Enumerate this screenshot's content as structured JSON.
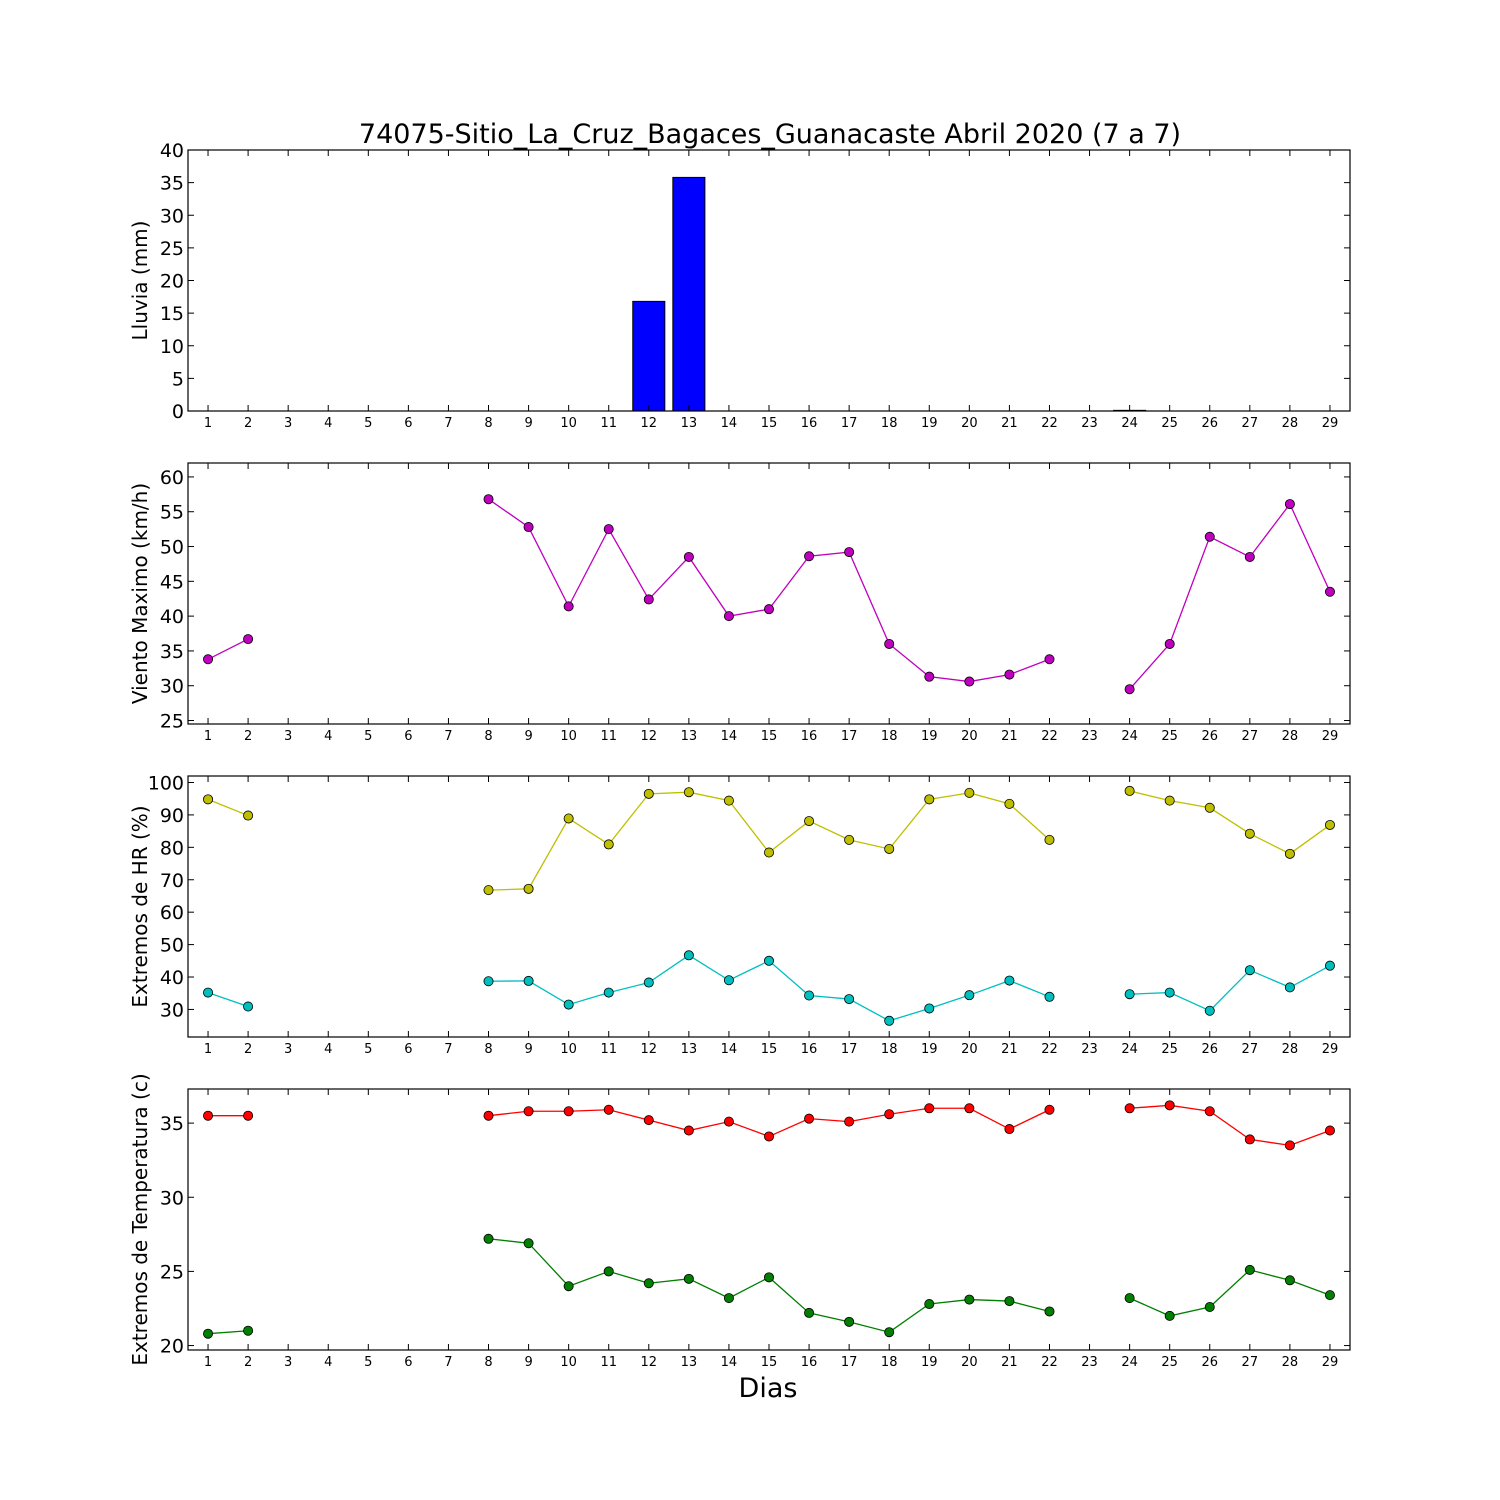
{
  "chart_data": {
    "type": "multi-panel",
    "title": "74075-Sitio_La_Cruz_Bagaces_Guanacaste Abril 2020  (7 a 7)",
    "xlabel": "Dias",
    "x": [
      1,
      2,
      3,
      4,
      5,
      6,
      7,
      8,
      9,
      10,
      11,
      12,
      13,
      14,
      15,
      16,
      17,
      18,
      19,
      20,
      21,
      22,
      23,
      24,
      25,
      26,
      27,
      28,
      29
    ],
    "x_tick_labels": [
      "1",
      "2",
      "3",
      "4",
      "5",
      "6",
      "7",
      "8",
      "9",
      "10",
      "11",
      "12",
      "13",
      "14",
      "15",
      "16",
      "17",
      "18",
      "19",
      "20",
      "21",
      "22",
      "23",
      "24",
      "25",
      "26",
      "27",
      "28",
      "29"
    ],
    "panels": [
      {
        "type": "bar",
        "ylabel": "Lluvia (mm)",
        "ylim": [
          0,
          40
        ],
        "yticks": [
          0,
          5,
          10,
          15,
          20,
          25,
          30,
          35,
          40
        ],
        "series": [
          {
            "color": "#0000ff",
            "values": [
              0,
              0,
              0,
              0,
              0,
              0,
              0,
              0,
              0,
              0,
              0,
              16.8,
              35.8,
              0,
              0,
              0,
              0,
              0,
              0,
              0,
              0,
              0,
              0,
              0.1,
              0,
              0,
              0,
              0,
              0
            ]
          }
        ]
      },
      {
        "type": "line",
        "ylabel": "Viento Maximo (km/h)",
        "ylim": [
          24.5,
          62
        ],
        "yticks": [
          25,
          30,
          35,
          40,
          45,
          50,
          55,
          60
        ],
        "series": [
          {
            "color": "#bf00bf",
            "values": [
              33.8,
              36.7,
              null,
              null,
              null,
              null,
              null,
              56.8,
              52.8,
              41.4,
              52.5,
              42.4,
              48.5,
              40.0,
              41.0,
              48.6,
              49.2,
              36.0,
              31.3,
              30.6,
              31.6,
              33.8,
              null,
              29.5,
              36.0,
              51.4,
              48.5,
              56.1,
              43.5
            ]
          }
        ]
      },
      {
        "type": "line",
        "ylabel": "Extremos de HR (%)",
        "ylim": [
          21.5,
          102
        ],
        "yticks": [
          30,
          40,
          50,
          60,
          70,
          80,
          90,
          100
        ],
        "series": [
          {
            "color": "#bfbf00",
            "values": [
              94.8,
              89.8,
              null,
              null,
              null,
              null,
              null,
              66.8,
              67.2,
              88.9,
              80.9,
              96.5,
              97.0,
              94.4,
              78.4,
              88.1,
              82.3,
              79.5,
              94.8,
              96.8,
              93.4,
              82.3,
              null,
              97.4,
              94.4,
              92.2,
              84.2,
              78.0,
              86.9
            ]
          },
          {
            "color": "#00bfbf",
            "values": [
              35.2,
              30.9,
              null,
              null,
              null,
              null,
              null,
              38.7,
              38.8,
              31.5,
              35.2,
              38.3,
              46.7,
              39.0,
              45.0,
              34.3,
              33.2,
              26.5,
              30.3,
              34.4,
              38.9,
              33.9,
              null,
              34.7,
              35.2,
              29.6,
              42.1,
              36.8,
              43.5
            ]
          }
        ]
      },
      {
        "type": "line",
        "ylabel": "Extremos de Temperatura (c)",
        "ylim": [
          19.7,
          37.3
        ],
        "yticks": [
          20,
          25,
          30,
          35
        ],
        "series": [
          {
            "color": "#ff0000",
            "values": [
              35.5,
              35.5,
              null,
              null,
              null,
              null,
              null,
              35.5,
              35.8,
              35.8,
              35.9,
              35.2,
              34.5,
              35.1,
              34.1,
              35.3,
              35.1,
              35.6,
              36.0,
              36.0,
              34.6,
              35.9,
              null,
              36.0,
              36.2,
              35.8,
              33.9,
              33.5,
              34.5
            ]
          },
          {
            "color": "#007f00",
            "values": [
              20.8,
              21.0,
              null,
              null,
              null,
              null,
              null,
              27.2,
              26.9,
              24.0,
              25.0,
              24.2,
              24.5,
              23.2,
              24.6,
              22.2,
              21.6,
              20.9,
              22.8,
              23.1,
              23.0,
              22.3,
              null,
              23.2,
              22.0,
              22.6,
              25.1,
              24.4,
              23.4
            ]
          }
        ]
      }
    ]
  }
}
